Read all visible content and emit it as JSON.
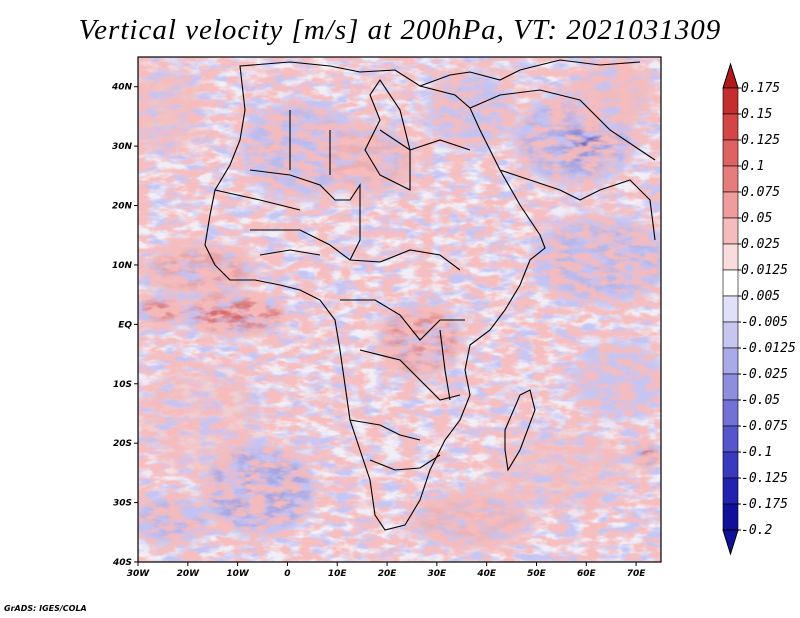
{
  "title": "Vertical velocity [m/s] at 200hPa, VT: 2021031309",
  "credit": "GrADS: IGES/COLA",
  "axes": {
    "lat_labels": [
      "40N",
      "30N",
      "20N",
      "10N",
      "EQ",
      "10S",
      "20S",
      "30S",
      "40S"
    ],
    "lon_labels": [
      "30W",
      "20W",
      "10W",
      "0",
      "10E",
      "20E",
      "30E",
      "40E",
      "50E",
      "60E",
      "70E"
    ],
    "lat_values": [
      40,
      30,
      20,
      10,
      0,
      -10,
      -20,
      -30,
      -40
    ],
    "lon_values": [
      -30,
      -20,
      -10,
      0,
      10,
      20,
      30,
      40,
      50,
      60,
      70
    ]
  },
  "colorbar": {
    "labels": [
      "0.175",
      "0.15",
      "0.125",
      "0.1",
      "0.075",
      "0.05",
      "0.025",
      "0.0125",
      "0.005",
      "-0.005",
      "-0.0125",
      "-0.025",
      "-0.05",
      "-0.075",
      "-0.1",
      "-0.125",
      "-0.175",
      "-0.2"
    ],
    "colors": [
      "#b21a1a",
      "#c52e2e",
      "#d44646",
      "#de6262",
      "#e67d7d",
      "#ee9c9c",
      "#f4bcbc",
      "#f9dcdc",
      "#ffffff",
      "#e0e0f8",
      "#c6c6f0",
      "#aaaae8",
      "#8e8edf",
      "#7272d6",
      "#5656cc",
      "#3a3abf",
      "#2222b0",
      "#10109a"
    ]
  }
}
